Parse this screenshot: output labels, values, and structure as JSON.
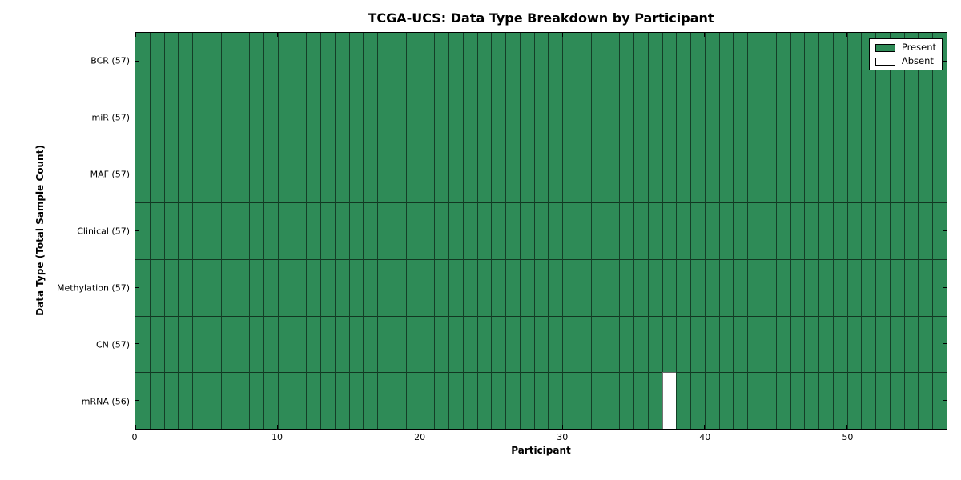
{
  "chart_data": {
    "type": "heatmap",
    "title": "TCGA-UCS: Data Type Breakdown by Participant",
    "xlabel": "Participant",
    "ylabel": "Data Type (Total Sample Count)",
    "x_range": [
      0,
      57
    ],
    "x_ticks": [
      0,
      10,
      20,
      30,
      40,
      50
    ],
    "n_participants": 57,
    "grid": "cell-borders",
    "legend_position": "upper right",
    "legend": [
      {
        "label": "Present",
        "color": "#2e8b57"
      },
      {
        "label": "Absent",
        "color": "#ffffff"
      }
    ],
    "colors": {
      "present": "#2e8b57",
      "absent": "#ffffff",
      "edge": "#000000"
    },
    "rows": [
      {
        "label": "BCR (57)",
        "data_type": "BCR",
        "total": 57,
        "absent_participants": []
      },
      {
        "label": "miR (57)",
        "data_type": "miR",
        "total": 57,
        "absent_participants": []
      },
      {
        "label": "MAF (57)",
        "data_type": "MAF",
        "total": 57,
        "absent_participants": []
      },
      {
        "label": "Clinical (57)",
        "data_type": "Clinical",
        "total": 57,
        "absent_participants": []
      },
      {
        "label": "Methylation (57)",
        "data_type": "Methylation",
        "total": 57,
        "absent_participants": []
      },
      {
        "label": "CN (57)",
        "data_type": "CN",
        "total": 57,
        "absent_participants": []
      },
      {
        "label": "mRNA (56)",
        "data_type": "mRNA",
        "total": 56,
        "absent_participants": [
          37
        ]
      }
    ]
  }
}
